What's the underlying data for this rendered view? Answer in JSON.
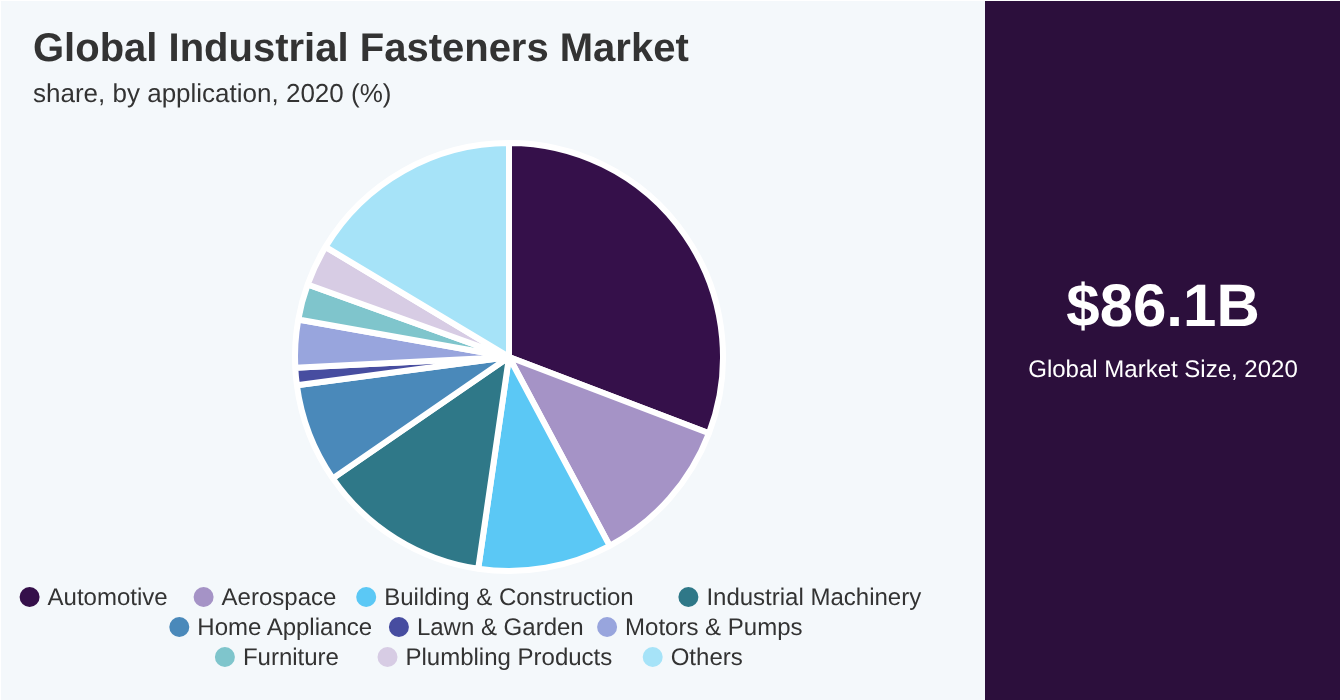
{
  "chart_data": {
    "type": "pie",
    "title": "Global Industrial Fasteners Market",
    "subtitle": "share, by application, 2020 (%)",
    "categories": [
      "Automotive",
      "Aerospace",
      "Building & Construction",
      "Industrial Machinery",
      "Home Appliance",
      "Lawn & Garden",
      "Motors & Pumps",
      "Furniture",
      "Plumbling Products",
      "Others"
    ],
    "values": [
      30.8,
      11.4,
      10.1,
      13.1,
      7.5,
      1.3,
      3.6,
      2.7,
      3.1,
      16.4
    ],
    "colors": [
      "#35104a",
      "#a593c6",
      "#5bc8f5",
      "#2f7888",
      "#4a89ba",
      "#474da0",
      "#98a5dd",
      "#7fc5cc",
      "#d7cce4",
      "#a6e3f8"
    ],
    "legend": "bottom",
    "annotations": [
      "$86.1B",
      "Global Market Size, 2020"
    ]
  }
}
